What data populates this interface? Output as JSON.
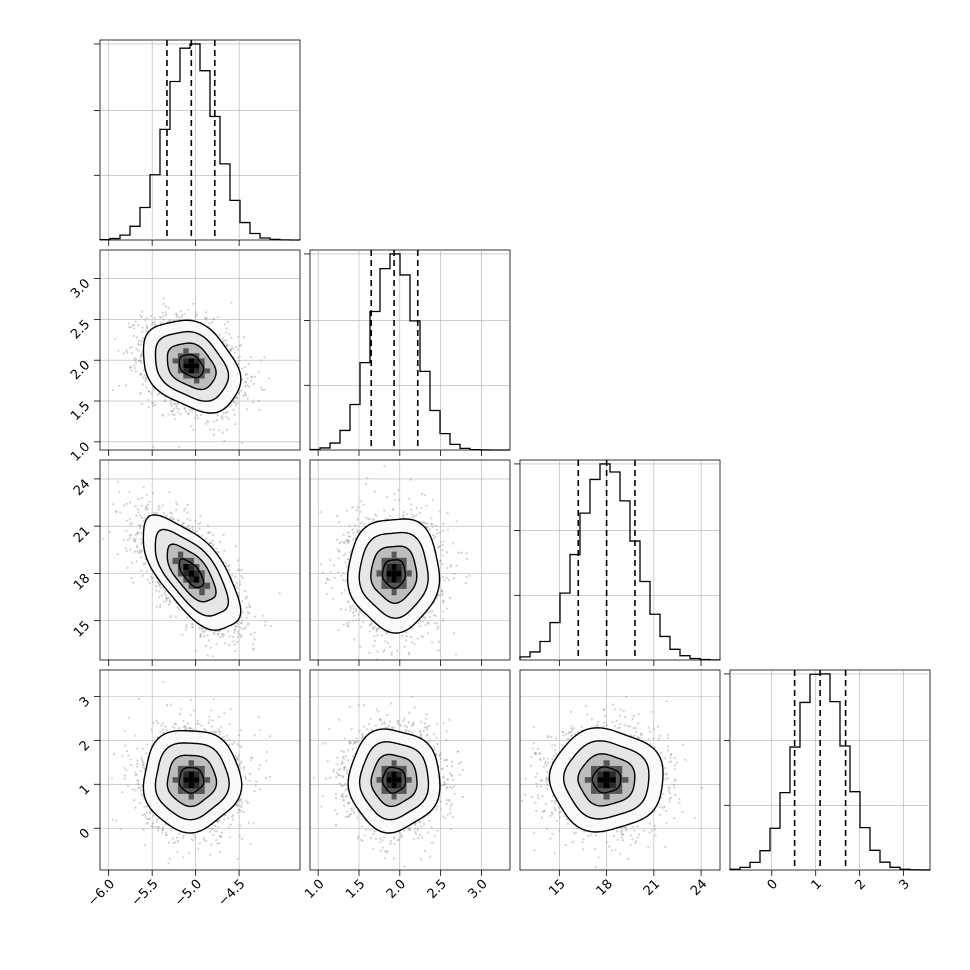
{
  "chart_data": {
    "type": "corner",
    "grid": true,
    "params": [
      {
        "center": -5.05,
        "sd": 0.28,
        "range": [
          -6.1,
          -3.8
        ],
        "quantiles": [
          -5.33,
          -5.05,
          -4.78
        ],
        "ticks": [
          -6.0,
          -5.5,
          -5.0,
          -4.5
        ],
        "tick_labels": [
          "−6.0",
          "−5.5",
          "−5.0",
          "−4.5"
        ]
      },
      {
        "center": 1.93,
        "sd": 0.28,
        "range": [
          0.9,
          3.35
        ],
        "quantiles": [
          1.65,
          1.93,
          2.22
        ],
        "ticks": [
          1.0,
          1.5,
          2.0,
          2.5,
          3.0
        ],
        "tick_labels": [
          "1.0",
          "1.5",
          "2.0",
          "2.5",
          "3.0"
        ]
      },
      {
        "center": 18.0,
        "sd": 1.8,
        "range": [
          12.5,
          25.2
        ],
        "quantiles": [
          16.2,
          18.0,
          19.8
        ],
        "ticks": [
          15,
          18,
          21,
          24
        ],
        "tick_labels": [
          "15",
          "18",
          "21",
          "24"
        ]
      },
      {
        "center": 1.1,
        "sd": 0.58,
        "range": [
          -0.95,
          3.6
        ],
        "quantiles": [
          0.52,
          1.1,
          1.68
        ],
        "ticks": [
          0,
          1,
          2,
          3
        ],
        "tick_labels": [
          "0",
          "1",
          "2",
          "3"
        ]
      }
    ],
    "correlations": [
      [
        1.0,
        -0.3,
        -0.65,
        0.0
      ],
      [
        -0.3,
        1.0,
        0.0,
        0.0
      ],
      [
        -0.65,
        0.0,
        1.0,
        0.0
      ],
      [
        0.0,
        0.0,
        0.0,
        1.0
      ]
    ],
    "contour_levels_sigma": [
      0.5,
      1.0,
      1.5,
      2.0
    ],
    "histogram_bins": 20
  }
}
